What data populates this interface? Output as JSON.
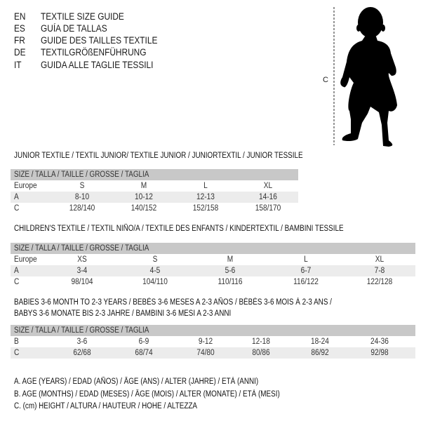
{
  "languages": [
    {
      "code": "EN",
      "title": "TEXTILE SIZE GUIDE"
    },
    {
      "code": "ES",
      "title": "GUÍA DE TALLAS"
    },
    {
      "code": "FR",
      "title": "GUIDE DES TAILLES TEXTILE"
    },
    {
      "code": "DE",
      "title": "TEXTILGRÖßENFÜHRUNG"
    },
    {
      "code": "IT",
      "title": "GUIDA ALLE TAGLIE TESSILI"
    }
  ],
  "figure": {
    "measure_label": "C",
    "icon": "baby-silhouette-icon"
  },
  "tables": [
    {
      "title": "JUNIOR TEXTILE / TEXTIL JUNIOR/ TEXTILE JUNIOR / JUNIORTEXTIL / JUNIOR TESSILE",
      "header": "SIZE / TALLA / TAILLE / GRÖSSE / TAGLIA",
      "rows": [
        {
          "label": "Europe",
          "values": [
            "S",
            "M",
            "L",
            "XL"
          ]
        },
        {
          "label": "A",
          "values": [
            "8-10",
            "10-12",
            "12-13",
            "14-16"
          ]
        },
        {
          "label": "C",
          "values": [
            "128/140",
            "140/152",
            "152/158",
            "158/170"
          ]
        }
      ]
    },
    {
      "title": "CHILDREN'S TEXTILE / TEXTIL NIÑO/A / TEXTILE DES ENFANTS / KINDERTEXTIL / BAMBINI TESSILE",
      "header": "SIZE / TALLA / TAILLE / GRÖSSE / TAGLIA",
      "rows": [
        {
          "label": "Europe",
          "values": [
            "XS",
            "S",
            "M",
            "L",
            "XL"
          ]
        },
        {
          "label": "A",
          "values": [
            "3-4",
            "4-5",
            "5-6",
            "6-7",
            "7-8"
          ]
        },
        {
          "label": "C",
          "values": [
            "98/104",
            "104/110",
            "110/116",
            "116/122",
            "122/128"
          ]
        }
      ]
    },
    {
      "title": "BABIES 3-6 MONTH TO 2-3 YEARS / BEBÉS 3-6 MESES A 2-3 AÑOS / BÉBÉS 3-6 MOIS À 2-3 ANS /",
      "title2": "BABYS 3-6 MONATE BIS 2-3 JAHRE / BAMBINI 3-6 MESI A 2-3 ANNI",
      "header": "SIZE / TALLA / TAILLE / GRÖSSE / TAGLIA",
      "rows": [
        {
          "label": "B",
          "values": [
            "3-6",
            "6-9",
            "9-12",
            "12-18",
            "18-24",
            "24-36"
          ]
        },
        {
          "label": "C",
          "values": [
            "62/68",
            "68/74",
            "74/80",
            "80/86",
            "86/92",
            "92/98"
          ]
        }
      ]
    }
  ],
  "legend": [
    "A. AGE (YEARS) / EDAD (AÑOS) / ÂGE (ANS) / ALTER (JAHRE) / ETÀ (ANNI)",
    "B. AGE (MONTHS) / EDAD (MESES) / ÂGE (MOIS) / ALTER (MONATE) / ETÀ (MESI)",
    "C. (cm) HEIGHT / ALTURA / HAUTEUR / HÖHE / ALTEZZA"
  ]
}
